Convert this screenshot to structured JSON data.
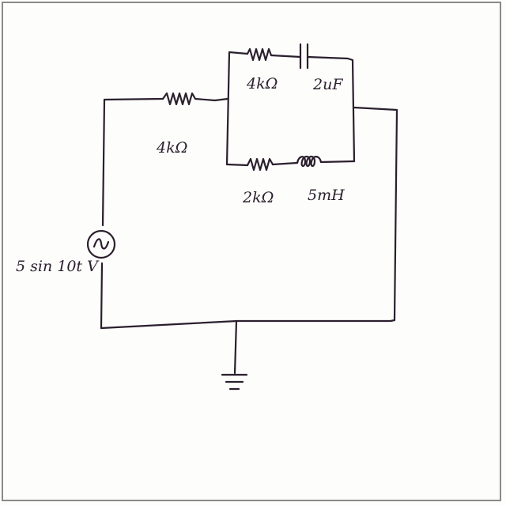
{
  "circuit": {
    "source_label": "5 sin 10t V",
    "r_series_label": "4kΩ",
    "r_top_label": "4kΩ",
    "c_top_label": "2uF",
    "r_bottom_label": "2kΩ",
    "l_bottom_label": "5mH"
  },
  "colors": {
    "ink": "#2b1f2e",
    "paper": "#fdfdfb",
    "border": "#8a8a8a"
  }
}
